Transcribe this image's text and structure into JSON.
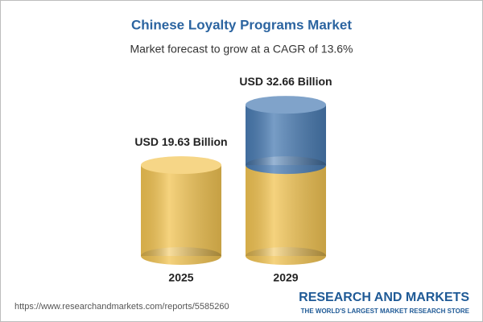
{
  "chart_data": {
    "type": "cylinder",
    "title": "Chinese Loyalty Programs Market",
    "subtitle": "Market forecast to grow at a CAGR of 13.6%",
    "categories": [
      "2025",
      "2029"
    ],
    "values": [
      19.63,
      32.66
    ],
    "value_labels": [
      "USD 19.63 Billion",
      "USD 32.66 Billion"
    ],
    "color": "#f2c453",
    "growth_color": "#4a7cb3"
  },
  "footer": {
    "url": "https://www.researchandmarkets.com/reports/5585260",
    "brand": "RESEARCH AND MARKETS",
    "tagline": "THE WORLD'S LARGEST MARKET RESEARCH STORE"
  }
}
